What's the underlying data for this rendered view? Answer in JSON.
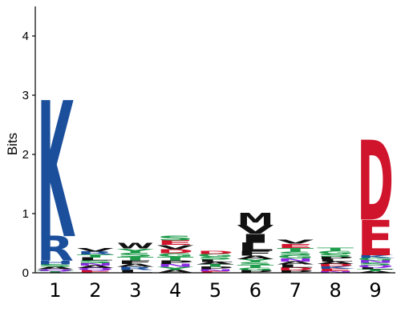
{
  "chart_data": {
    "type": "sequence-logo",
    "title": "",
    "ylabel": "Bits",
    "xlabel": "",
    "ylim": [
      0,
      4.5
    ],
    "yticks": [
      0,
      1,
      2,
      3,
      4
    ],
    "positions": [
      "1",
      "2",
      "3",
      "4",
      "5",
      "6",
      "7",
      "8",
      "9"
    ],
    "colors": {
      "blue": "#1b4f9c",
      "red": "#d0142c",
      "green": "#1e9c4b",
      "black": "#111111",
      "purple": "#8a2be2",
      "lightblue": "#7fa7d9",
      "gray": "#aaaaaa"
    },
    "columns": [
      {
        "position": "1",
        "letters": [
          {
            "letter": "K",
            "color": "blue",
            "bits": 2.3
          },
          {
            "letter": "R",
            "color": "blue",
            "bits": 0.42
          },
          {
            "letter": "H",
            "color": "blue",
            "bits": 0.06
          },
          {
            "letter": "A",
            "color": "black",
            "bits": 0.04
          },
          {
            "letter": "S",
            "color": "green",
            "bits": 0.04
          },
          {
            "letter": "T",
            "color": "green",
            "bits": 0.03
          },
          {
            "letter": "Q",
            "color": "purple",
            "bits": 0.03
          }
        ]
      },
      {
        "position": "2",
        "letters": [
          {
            "letter": "V",
            "color": "black",
            "bits": 0.06
          },
          {
            "letter": "S",
            "color": "green",
            "bits": 0.05
          },
          {
            "letter": "L",
            "color": "black",
            "bits": 0.05
          },
          {
            "letter": "T",
            "color": "green",
            "bits": 0.05
          },
          {
            "letter": "R",
            "color": "blue",
            "bits": 0.05
          },
          {
            "letter": "E",
            "color": "red",
            "bits": 0.04
          },
          {
            "letter": "Q",
            "color": "purple",
            "bits": 0.04
          },
          {
            "letter": "A",
            "color": "black",
            "bits": 0.04
          },
          {
            "letter": "N",
            "color": "purple",
            "bits": 0.04
          }
        ]
      },
      {
        "position": "3",
        "letters": [
          {
            "letter": "W",
            "color": "black",
            "bits": 0.1
          },
          {
            "letter": "S",
            "color": "green",
            "bits": 0.07
          },
          {
            "letter": "Y",
            "color": "green",
            "bits": 0.07
          },
          {
            "letter": "F",
            "color": "black",
            "bits": 0.06
          },
          {
            "letter": "T",
            "color": "green",
            "bits": 0.06
          },
          {
            "letter": "L",
            "color": "black",
            "bits": 0.05
          },
          {
            "letter": "R",
            "color": "blue",
            "bits": 0.05
          },
          {
            "letter": "A",
            "color": "black",
            "bits": 0.05
          }
        ]
      },
      {
        "position": "4",
        "letters": [
          {
            "letter": "E",
            "color": "red",
            "bits": 0.08
          },
          {
            "letter": "S",
            "color": "green",
            "bits": 0.08
          },
          {
            "letter": "D",
            "color": "red",
            "bits": 0.07
          },
          {
            "letter": "V",
            "color": "black",
            "bits": 0.07
          },
          {
            "letter": "P",
            "color": "black",
            "bits": 0.06
          },
          {
            "letter": "T",
            "color": "green",
            "bits": 0.06
          },
          {
            "letter": "G",
            "color": "green",
            "bits": 0.06
          },
          {
            "letter": "A",
            "color": "black",
            "bits": 0.05
          },
          {
            "letter": "Y",
            "color": "green",
            "bits": 0.05
          },
          {
            "letter": "N",
            "color": "purple",
            "bits": 0.05
          }
        ]
      },
      {
        "position": "5",
        "letters": [
          {
            "letter": "S",
            "color": "green",
            "bits": 0.05
          },
          {
            "letter": "G",
            "color": "green",
            "bits": 0.05
          },
          {
            "letter": "D",
            "color": "red",
            "bits": 0.05
          },
          {
            "letter": "P",
            "color": "black",
            "bits": 0.04
          },
          {
            "letter": "T",
            "color": "green",
            "bits": 0.04
          },
          {
            "letter": "A",
            "color": "black",
            "bits": 0.04
          },
          {
            "letter": "L",
            "color": "black",
            "bits": 0.04
          },
          {
            "letter": "E",
            "color": "red",
            "bits": 0.03
          },
          {
            "letter": "N",
            "color": "purple",
            "bits": 0.03
          }
        ]
      },
      {
        "position": "6",
        "letters": [
          {
            "letter": "I",
            "color": "black",
            "bits": 0.15
          },
          {
            "letter": "M",
            "color": "black",
            "bits": 0.2
          },
          {
            "letter": "V",
            "color": "black",
            "bits": 0.15
          },
          {
            "letter": "L",
            "color": "black",
            "bits": 0.14
          },
          {
            "letter": "F",
            "color": "black",
            "bits": 0.08
          },
          {
            "letter": "A",
            "color": "black",
            "bits": 0.06
          },
          {
            "letter": "T",
            "color": "green",
            "bits": 0.05
          },
          {
            "letter": "S",
            "color": "green",
            "bits": 0.05
          },
          {
            "letter": "Y",
            "color": "green",
            "bits": 0.05
          },
          {
            "letter": "P",
            "color": "black",
            "bits": 0.04
          },
          {
            "letter": "G",
            "color": "green",
            "bits": 0.04
          }
        ]
      },
      {
        "position": "7",
        "letters": [
          {
            "letter": "P",
            "color": "black",
            "bits": 0.04
          },
          {
            "letter": "E",
            "color": "red",
            "bits": 0.07
          },
          {
            "letter": "D",
            "color": "red",
            "bits": 0.05
          },
          {
            "letter": "V",
            "color": "black",
            "bits": 0.07
          },
          {
            "letter": "G",
            "color": "green",
            "bits": 0.06
          },
          {
            "letter": "S",
            "color": "green",
            "bits": 0.06
          },
          {
            "letter": "T",
            "color": "green",
            "bits": 0.06
          },
          {
            "letter": "L",
            "color": "black",
            "bits": 0.05
          },
          {
            "letter": "A",
            "color": "black",
            "bits": 0.05
          },
          {
            "letter": "N",
            "color": "purple",
            "bits": 0.05
          }
        ]
      },
      {
        "position": "8",
        "letters": [
          {
            "letter": "E",
            "color": "red",
            "bits": 0.04
          },
          {
            "letter": "K",
            "color": "blue",
            "bits": 0.04
          },
          {
            "letter": "S",
            "color": "green",
            "bits": 0.05
          },
          {
            "letter": "G",
            "color": "green",
            "bits": 0.05
          },
          {
            "letter": "T",
            "color": "green",
            "bits": 0.05
          },
          {
            "letter": "D",
            "color": "red",
            "bits": 0.04
          },
          {
            "letter": "A",
            "color": "black",
            "bits": 0.04
          },
          {
            "letter": "L",
            "color": "black",
            "bits": 0.04
          },
          {
            "letter": "P",
            "color": "black",
            "bits": 0.04
          },
          {
            "letter": "N",
            "color": "purple",
            "bits": 0.03
          }
        ]
      },
      {
        "position": "9",
        "letters": [
          {
            "letter": "D",
            "color": "red",
            "bits": 1.35
          },
          {
            "letter": "E",
            "color": "red",
            "bits": 0.6
          },
          {
            "letter": "K",
            "color": "blue",
            "bits": 0.05
          },
          {
            "letter": "Q",
            "color": "purple",
            "bits": 0.04
          },
          {
            "letter": "S",
            "color": "green",
            "bits": 0.04
          },
          {
            "letter": "N",
            "color": "purple",
            "bits": 0.04
          },
          {
            "letter": "G",
            "color": "green",
            "bits": 0.04
          },
          {
            "letter": "A",
            "color": "black",
            "bits": 0.03
          },
          {
            "letter": "T",
            "color": "green",
            "bits": 0.03
          },
          {
            "letter": "L",
            "color": "black",
            "bits": 0.03
          }
        ]
      }
    ]
  }
}
